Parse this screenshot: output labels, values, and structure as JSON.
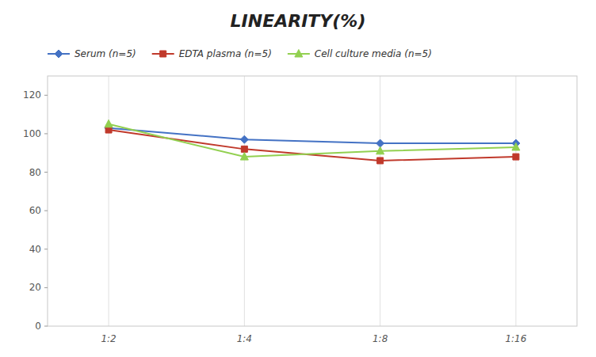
{
  "chart_data": {
    "type": "line",
    "title": "LINEARITY(%)",
    "categories": [
      "1:2",
      "1:4",
      "1:8",
      "1:16"
    ],
    "series": [
      {
        "name": "Serum (n=5)",
        "color": "#4472C4",
        "marker": "diamond",
        "values": [
          103,
          97,
          95,
          95
        ]
      },
      {
        "name": "EDTA plasma (n=5)",
        "color": "#C0392B",
        "marker": "square",
        "values": [
          102,
          92,
          86,
          88
        ]
      },
      {
        "name": "Cell culture media (n=5)",
        "color": "#92D050",
        "marker": "triangle",
        "values": [
          105,
          88,
          91,
          93
        ]
      }
    ],
    "ylim": [
      0,
      130
    ],
    "yticks": [
      0,
      20,
      40,
      60,
      80,
      100,
      120
    ],
    "grid": "x",
    "legend": "top"
  }
}
